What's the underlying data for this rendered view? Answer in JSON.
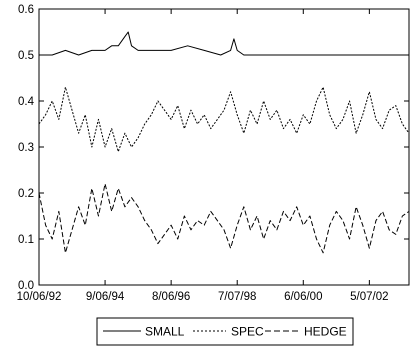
{
  "chart_data": {
    "type": "line",
    "title": "",
    "xlabel": "",
    "ylabel": "",
    "ylim": [
      0.0,
      0.6
    ],
    "y_ticks": [
      "0.0",
      "0.1",
      "0.2",
      "0.3",
      "0.4",
      "0.5",
      "0.6"
    ],
    "x_ticks": [
      "10/06/92",
      "9/06/94",
      "8/06/96",
      "7/07/98",
      "6/06/00",
      "5/07/02"
    ],
    "x_tick_positions": [
      0,
      20,
      40,
      60,
      80,
      100
    ],
    "xlim": [
      0,
      112
    ],
    "grid": false,
    "legend_position": "bottom",
    "series": [
      {
        "name": "SMALL",
        "style": "solid",
        "x": [
          0,
          4,
          8,
          12,
          16,
          20,
          22,
          24,
          26,
          27,
          28,
          30,
          32,
          35,
          38,
          40,
          45,
          50,
          55,
          58,
          59,
          60,
          62,
          65,
          70,
          75,
          80,
          85,
          90,
          95,
          100,
          105,
          110,
          112
        ],
        "values": [
          0.5,
          0.5,
          0.51,
          0.5,
          0.51,
          0.51,
          0.52,
          0.52,
          0.54,
          0.55,
          0.52,
          0.51,
          0.51,
          0.51,
          0.51,
          0.51,
          0.52,
          0.51,
          0.5,
          0.51,
          0.535,
          0.51,
          0.5,
          0.5,
          0.5,
          0.5,
          0.5,
          0.5,
          0.5,
          0.5,
          0.5,
          0.5,
          0.5,
          0.5
        ]
      },
      {
        "name": "SPEC",
        "style": "dotted",
        "x": [
          0,
          2,
          4,
          6,
          8,
          10,
          12,
          14,
          16,
          18,
          20,
          22,
          24,
          26,
          28,
          30,
          32,
          34,
          36,
          38,
          40,
          42,
          44,
          46,
          48,
          50,
          52,
          54,
          56,
          58,
          60,
          62,
          64,
          66,
          68,
          70,
          72,
          74,
          76,
          78,
          80,
          82,
          84,
          86,
          88,
          90,
          92,
          94,
          96,
          98,
          100,
          102,
          104,
          106,
          108,
          110,
          112
        ],
        "values": [
          0.35,
          0.37,
          0.4,
          0.36,
          0.43,
          0.38,
          0.33,
          0.37,
          0.3,
          0.36,
          0.3,
          0.34,
          0.29,
          0.33,
          0.3,
          0.32,
          0.35,
          0.37,
          0.4,
          0.38,
          0.36,
          0.39,
          0.34,
          0.38,
          0.35,
          0.37,
          0.34,
          0.36,
          0.38,
          0.42,
          0.37,
          0.33,
          0.38,
          0.35,
          0.4,
          0.36,
          0.38,
          0.34,
          0.36,
          0.33,
          0.37,
          0.35,
          0.4,
          0.43,
          0.37,
          0.34,
          0.36,
          0.4,
          0.33,
          0.37,
          0.42,
          0.36,
          0.34,
          0.38,
          0.39,
          0.35,
          0.33
        ]
      },
      {
        "name": "HEDGE",
        "style": "dashed",
        "x": [
          0,
          2,
          4,
          6,
          8,
          10,
          12,
          14,
          16,
          18,
          20,
          22,
          24,
          26,
          28,
          30,
          32,
          34,
          36,
          38,
          40,
          42,
          44,
          46,
          48,
          50,
          52,
          54,
          56,
          58,
          60,
          62,
          64,
          66,
          68,
          70,
          72,
          74,
          76,
          78,
          80,
          82,
          84,
          86,
          88,
          90,
          92,
          94,
          96,
          98,
          100,
          102,
          104,
          106,
          108,
          110,
          112
        ],
        "values": [
          0.2,
          0.13,
          0.1,
          0.16,
          0.07,
          0.12,
          0.17,
          0.13,
          0.21,
          0.15,
          0.22,
          0.16,
          0.21,
          0.17,
          0.19,
          0.17,
          0.14,
          0.12,
          0.09,
          0.11,
          0.13,
          0.1,
          0.15,
          0.12,
          0.14,
          0.13,
          0.16,
          0.14,
          0.12,
          0.08,
          0.13,
          0.17,
          0.12,
          0.15,
          0.1,
          0.14,
          0.12,
          0.16,
          0.14,
          0.17,
          0.13,
          0.15,
          0.1,
          0.07,
          0.13,
          0.16,
          0.14,
          0.1,
          0.17,
          0.13,
          0.08,
          0.14,
          0.16,
          0.12,
          0.11,
          0.15,
          0.16
        ]
      }
    ]
  }
}
